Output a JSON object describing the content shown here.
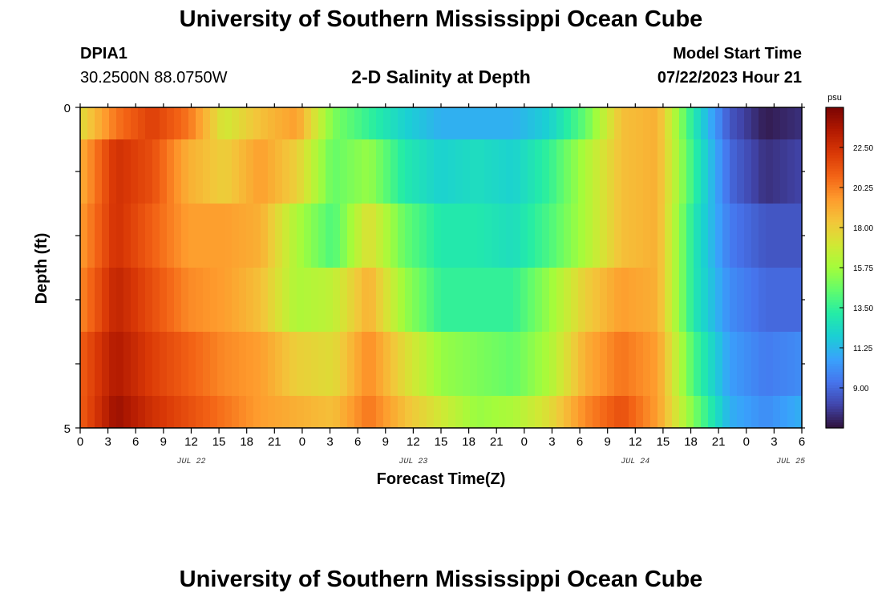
{
  "header": {
    "title": "University of Southern Mississippi Ocean Cube",
    "station_id": "DPIA1",
    "station_coords": "30.2500N  88.0750W",
    "plot_title": "2-D Salinity at Depth",
    "model_start_label": "Model Start Time",
    "model_start_value": "07/22/2023 Hour 21"
  },
  "footer": {
    "title": "University of Southern Mississippi Ocean Cube"
  },
  "chart_data": {
    "type": "heatmap",
    "title": "2-D Salinity at Depth",
    "xlabel": "Forecast Time(Z)",
    "ylabel": "Depth (ft)",
    "x_hours": [
      0,
      3,
      6,
      9,
      12,
      15,
      18,
      21,
      0,
      3,
      6,
      9,
      12,
      15,
      18,
      21,
      0,
      3,
      6,
      9,
      12,
      15,
      18,
      21,
      0,
      3,
      6
    ],
    "x_tick_labels": [
      "0",
      "3",
      "6",
      "9",
      "12",
      "15",
      "18",
      "21",
      "0",
      "3",
      "6",
      "9",
      "12",
      "15",
      "18",
      "21",
      "0",
      "3",
      "6",
      "9",
      "12",
      "15",
      "18",
      "21",
      "0",
      "3",
      "6"
    ],
    "date_labels": [
      "JUL 22",
      "JUL 23",
      "JUL 24",
      "JUL 25"
    ],
    "y_tick_labels": [
      "0",
      "5"
    ],
    "ylim": [
      0,
      5
    ],
    "depth_rows": 5,
    "colorbar": {
      "unit": "psu",
      "ticks": [
        "22.50",
        "20.25",
        "18.00",
        "15.75",
        "13.50",
        "11.25",
        "9.00"
      ],
      "min": 6.75,
      "max": 24.75,
      "colormap": [
        "#30123b",
        "#4145ab",
        "#4675ed",
        "#39a2fc",
        "#1bcfd4",
        "#24eca6",
        "#61fc6c",
        "#a4fc3b",
        "#d1e834",
        "#f3c63a",
        "#fe9b2d",
        "#f36315",
        "#d93806",
        "#b11901",
        "#7a0403"
      ]
    },
    "salinity_psu": [
      [
        17.5,
        20.5,
        22.0,
        20.5,
        17.0,
        18.5,
        19.5,
        15.0,
        13.5,
        12.0,
        11.0,
        11.0,
        11.0,
        12.0,
        14.5,
        18.5,
        19.0,
        13.0,
        8.5,
        7.0,
        7.5
      ],
      [
        19.0,
        22.5,
        21.5,
        19.0,
        18.0,
        19.5,
        18.0,
        14.5,
        15.5,
        13.0,
        12.0,
        12.5,
        12.0,
        13.5,
        16.0,
        18.5,
        19.0,
        13.5,
        9.0,
        7.5,
        8.0
      ],
      [
        19.5,
        22.5,
        21.0,
        19.5,
        19.5,
        19.0,
        16.0,
        14.0,
        17.5,
        14.5,
        13.0,
        13.0,
        12.5,
        14.0,
        16.0,
        18.5,
        19.0,
        13.0,
        9.5,
        8.5,
        8.5
      ],
      [
        20.0,
        23.0,
        21.5,
        20.0,
        19.5,
        18.5,
        16.0,
        16.5,
        19.0,
        15.5,
        13.5,
        13.5,
        13.5,
        15.5,
        18.0,
        19.5,
        19.0,
        13.0,
        10.0,
        9.0,
        9.0
      ],
      [
        21.0,
        23.5,
        22.0,
        21.0,
        20.0,
        19.5,
        18.0,
        17.5,
        20.0,
        17.5,
        15.5,
        15.0,
        14.5,
        16.0,
        19.0,
        20.5,
        19.5,
        14.0,
        10.5,
        9.5,
        10.0
      ],
      [
        21.0,
        24.0,
        22.5,
        21.5,
        20.5,
        19.5,
        19.0,
        18.5,
        20.5,
        18.5,
        17.0,
        15.5,
        16.0,
        17.5,
        20.0,
        21.5,
        19.5,
        15.0,
        11.0,
        10.0,
        11.0
      ]
    ]
  }
}
